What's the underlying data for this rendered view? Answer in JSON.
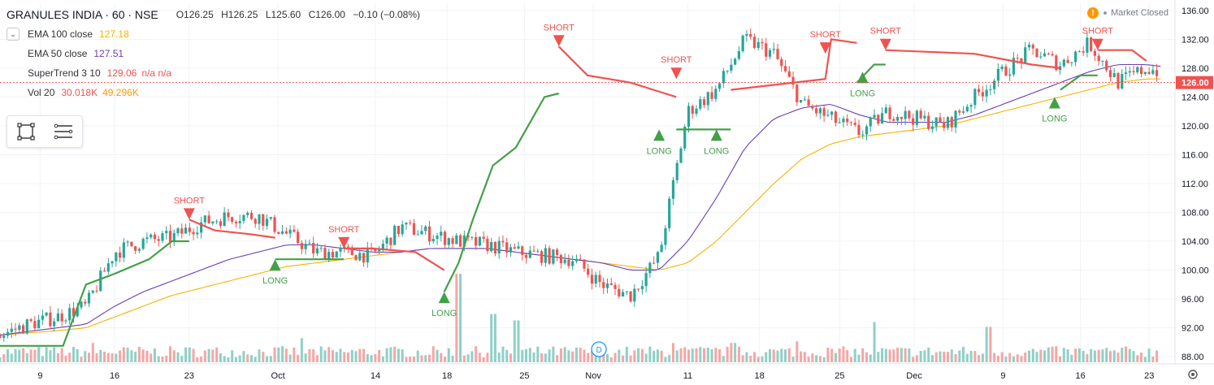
{
  "header": {
    "symbol": "GRANULES INDIA · 60 · NSE",
    "ohlc": {
      "open": "O126.25",
      "high": "H126.25",
      "low": "L125.60",
      "close": "C126.00",
      "change": "−0.10 (−0.08%)"
    }
  },
  "indicators": [
    {
      "name": "EMA 100 close",
      "value": "127.18",
      "color": "#f5b400"
    },
    {
      "name": "EMA 50 close",
      "value": "127.51",
      "color": "#6a3fb8"
    },
    {
      "name": "SuperTrend 3 10",
      "value": "129.06",
      "extra": "n/a n/a",
      "color": "#f05454"
    },
    {
      "name": "Vol 20",
      "value": "30.018K",
      "value2": "49.296K",
      "color": "#f05454",
      "color2": "#ff9800"
    }
  ],
  "market_status": "Market Closed",
  "colors": {
    "up": "#26a69a",
    "down": "#ef5350",
    "long": "#43a047",
    "short": "#ef5350",
    "ema100": "#f5b400",
    "ema50": "#6a3fb8",
    "vol_up": "#8fd0c6",
    "vol_down": "#f6a6a4"
  },
  "chart_data": {
    "type": "candlestick",
    "title": "GRANULES INDIA · 60 · NSE",
    "ylim": [
      87,
      137
    ],
    "y_ticks": [
      "88.00",
      "92.00",
      "96.00",
      "100.00",
      "104.00",
      "108.00",
      "112.00",
      "116.00",
      "120.00",
      "124.00",
      "128.00",
      "132.00",
      "136.00"
    ],
    "x_tick_labels": [
      "9",
      "16",
      "23",
      "Oct",
      "14",
      "18",
      "25",
      "Nov",
      "11",
      "18",
      "25",
      "Dec",
      "9",
      "16",
      "23"
    ],
    "x_tick_positions": [
      1.4,
      4.0,
      6.6,
      9.7,
      13.1,
      15.6,
      18.3,
      20.7,
      24.0,
      26.5,
      29.3,
      31.9,
      35.0,
      37.7,
      40.1
    ],
    "last_price_label": "126.00",
    "daily_closes": [
      91.0,
      92.5,
      93.5,
      95.0,
      102.5,
      104.0,
      104.5,
      106.5,
      107.5,
      107.5,
      105.0,
      102.5,
      102.5,
      102.0,
      106.0,
      105.0,
      104.0,
      103.5,
      102.5,
      102.0,
      101.5,
      98.0,
      96.5,
      102.0,
      122.0,
      125.0,
      132.0,
      130.0,
      123.0,
      121.0,
      119.0,
      122.0,
      121.0,
      120.0,
      124.0,
      127.5,
      130.5,
      128.5,
      131.5,
      126.0,
      128.0,
      127.0,
      126.5,
      125.5,
      122.0,
      123.0,
      124.0,
      130.0,
      128.0,
      127.0,
      126.0
    ],
    "ema50_daily": [
      91.0,
      91.5,
      92.0,
      92.5,
      95.0,
      97.0,
      98.5,
      100.0,
      101.5,
      102.5,
      103.5,
      103.5,
      103.0,
      102.5,
      102.5,
      103.0,
      103.0,
      103.0,
      102.5,
      102.0,
      101.5,
      101.0,
      100.0,
      100.0,
      104.0,
      110.0,
      117.0,
      121.0,
      122.5,
      123.0,
      121.5,
      120.5,
      120.5,
      120.5,
      121.5,
      123.0,
      124.5,
      126.0,
      127.5,
      128.5,
      128.5,
      128.0,
      127.5,
      127.0,
      126.0,
      125.0,
      124.5,
      126.5,
      127.5,
      127.5,
      127.51
    ],
    "ema100_daily": [
      91.0,
      91.3,
      91.6,
      92.0,
      93.5,
      95.0,
      96.5,
      97.5,
      98.5,
      99.5,
      100.5,
      101.0,
      101.5,
      102.0,
      102.5,
      103.0,
      103.0,
      103.0,
      102.5,
      102.0,
      101.5,
      101.0,
      100.5,
      100.0,
      101.0,
      104.0,
      108.0,
      112.0,
      115.5,
      117.5,
      118.5,
      119.0,
      119.5,
      120.0,
      121.0,
      122.0,
      123.0,
      124.0,
      125.0,
      126.0,
      126.5,
      126.5,
      126.0,
      125.5,
      125.0,
      125.0,
      125.0,
      126.0,
      127.0,
      127.18,
      127.18
    ],
    "supertrend_segments": [
      {
        "type": "long",
        "points": [
          [
            0,
            89.5
          ],
          [
            2.2,
            89.5
          ],
          [
            3.0,
            98.0
          ],
          [
            4.0,
            99.5
          ],
          [
            5.2,
            101.5
          ],
          [
            6.0,
            104.0
          ],
          [
            6.6,
            104.0
          ]
        ]
      },
      {
        "type": "short",
        "points": [
          [
            6.6,
            107.0
          ],
          [
            7.5,
            105.5
          ],
          [
            8.7,
            105.0
          ],
          [
            9.6,
            104.5
          ]
        ]
      },
      {
        "type": "long",
        "points": [
          [
            9.6,
            101.5
          ],
          [
            12.0,
            101.5
          ]
        ]
      },
      {
        "type": "short",
        "points": [
          [
            12.0,
            103.0
          ],
          [
            13.0,
            103.0
          ],
          [
            14.5,
            102.5
          ],
          [
            15.5,
            100.0
          ]
        ]
      },
      {
        "type": "long",
        "points": [
          [
            15.5,
            97.0
          ],
          [
            16.0,
            101.0
          ],
          [
            16.5,
            107.0
          ],
          [
            17.2,
            114.5
          ],
          [
            18.0,
            117.0
          ],
          [
            19.0,
            124.0
          ],
          [
            19.5,
            124.5
          ]
        ]
      },
      {
        "type": "short",
        "points": [
          [
            19.5,
            131.0
          ],
          [
            20.5,
            127.0
          ],
          [
            22.0,
            126.0
          ],
          [
            23.2,
            124.5
          ],
          [
            23.6,
            124.0
          ]
        ]
      },
      {
        "type": "long",
        "points": [
          [
            23.6,
            119.5
          ],
          [
            25.5,
            119.5
          ]
        ]
      },
      {
        "type": "short",
        "points": [
          [
            25.5,
            125.0
          ],
          [
            28.8,
            126.5
          ],
          [
            29.0,
            132.0
          ],
          [
            29.9,
            131.5
          ]
        ]
      },
      {
        "type": "long",
        "points": [
          [
            29.9,
            126.0
          ],
          [
            30.5,
            128.5
          ],
          [
            30.9,
            128.5
          ]
        ]
      },
      {
        "type": "short",
        "points": [
          [
            30.9,
            130.5
          ],
          [
            34.0,
            130.0
          ],
          [
            36.0,
            128.5
          ],
          [
            37.0,
            128.0
          ]
        ]
      },
      {
        "type": "long",
        "points": [
          [
            37.0,
            125.0
          ],
          [
            37.7,
            127.0
          ],
          [
            38.3,
            127.0
          ]
        ]
      },
      {
        "type": "short",
        "points": [
          [
            38.3,
            130.5
          ],
          [
            39.5,
            130.5
          ],
          [
            40.0,
            129.0
          ]
        ]
      }
    ],
    "signals": [
      {
        "label": "SHORT",
        "x": 6.6,
        "y": 107.0
      },
      {
        "label": "LONG",
        "x": 9.6,
        "y": 101.5
      },
      {
        "label": "SHORT",
        "x": 12.0,
        "y": 103.0
      },
      {
        "label": "LONG",
        "x": 15.5,
        "y": 97.0
      },
      {
        "label": "SHORT",
        "x": 19.5,
        "y": 131.0
      },
      {
        "label": "LONG",
        "x": 23.0,
        "y": 119.5
      },
      {
        "label": "SHORT",
        "x": 23.6,
        "y": 126.5
      },
      {
        "label": "LONG",
        "x": 25.0,
        "y": 119.5
      },
      {
        "label": "SHORT",
        "x": 28.8,
        "y": 130.0
      },
      {
        "label": "LONG",
        "x": 30.1,
        "y": 127.5
      },
      {
        "label": "SHORT",
        "x": 30.9,
        "y": 130.5
      },
      {
        "label": "LONG",
        "x": 36.8,
        "y": 124.0
      },
      {
        "label": "SHORT",
        "x": 38.3,
        "y": 130.5
      }
    ],
    "volume_spikes": [
      [
        16.0,
        0.55
      ],
      [
        17.2,
        0.3
      ],
      [
        18.0,
        0.26
      ],
      [
        30.5,
        0.25
      ],
      [
        34.5,
        0.22
      ],
      [
        10.5,
        0.15
      ],
      [
        3.2,
        0.12
      ],
      [
        23.5,
        0.12
      ],
      [
        25.6,
        0.12
      ],
      [
        27.8,
        0.13
      ]
    ],
    "dividend_marker": "D",
    "dividend_x": 20.9
  }
}
